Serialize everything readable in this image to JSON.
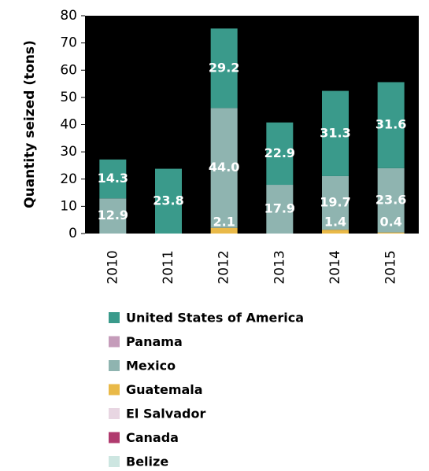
{
  "chart_data": {
    "type": "bar",
    "stacked": true,
    "y_label": "Quantity seized (tons)",
    "categories": [
      "2010",
      "2011",
      "2012",
      "2013",
      "2014",
      "2015"
    ],
    "series": [
      {
        "name": "Belize",
        "color": "#cde6e1",
        "values": [
          0,
          0,
          0,
          0,
          0,
          0
        ],
        "value_labels": [
          null,
          null,
          null,
          null,
          null,
          null
        ]
      },
      {
        "name": "Canada",
        "color": "#b03a6e",
        "values": [
          0,
          0,
          0,
          0,
          0,
          0
        ],
        "value_labels": [
          null,
          null,
          null,
          null,
          null,
          null
        ]
      },
      {
        "name": "El Salvador",
        "color": "#e8d6e2",
        "values": [
          0,
          0,
          0,
          0,
          0,
          0
        ],
        "value_labels": [
          null,
          null,
          null,
          null,
          null,
          null
        ]
      },
      {
        "name": "Guatemala",
        "color": "#e9b948",
        "values": [
          0,
          0,
          2.1,
          0,
          1.4,
          0.4
        ],
        "value_labels": [
          null,
          null,
          "2.1",
          null,
          "1.4",
          "0.4"
        ]
      },
      {
        "name": "Mexico",
        "color": "#8fb4b0",
        "values": [
          12.9,
          0,
          44.0,
          17.9,
          19.7,
          23.6
        ],
        "value_labels": [
          "12.9",
          null,
          "44.0",
          "17.9",
          "19.7",
          "23.6"
        ]
      },
      {
        "name": "Panama",
        "color": "#c59cba",
        "values": [
          0,
          0,
          0,
          0,
          0,
          0
        ],
        "value_labels": [
          null,
          null,
          null,
          null,
          null,
          null
        ]
      },
      {
        "name": "United States of America",
        "color": "#3a9a8b",
        "values": [
          14.3,
          23.8,
          29.2,
          22.9,
          31.3,
          31.6
        ],
        "value_labels": [
          "14.3",
          "23.8",
          "29.2",
          "22.9",
          "31.3",
          "31.6"
        ]
      }
    ],
    "ylim": [
      0,
      80
    ],
    "yticks": [
      0,
      10,
      20,
      30,
      40,
      50,
      60,
      70,
      80
    ],
    "plot_background": "#000000"
  }
}
